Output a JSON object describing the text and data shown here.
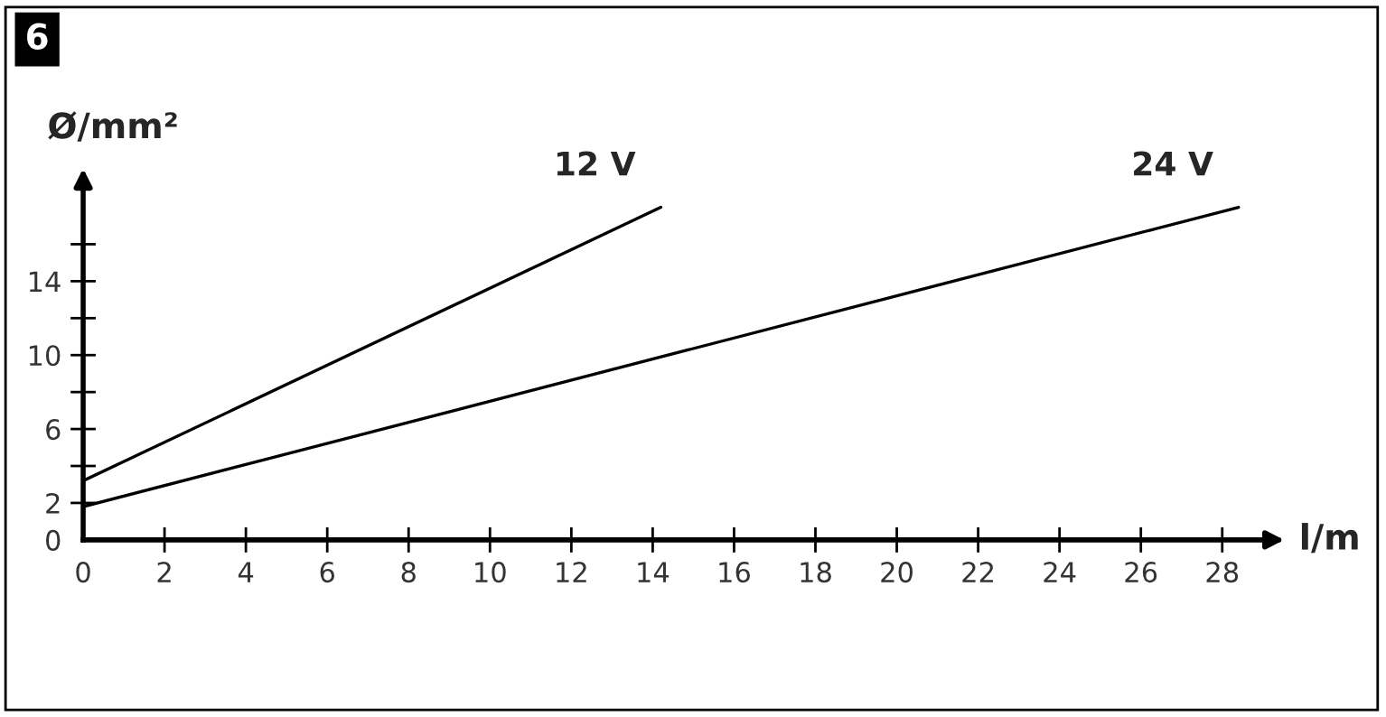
{
  "chart_data": {
    "type": "line",
    "title": "6",
    "xlabel": "l/m",
    "ylabel": "Ø/mm²",
    "series": [
      {
        "name": "12 V",
        "color": "#000000",
        "x": [
          0,
          14.2
        ],
        "values": [
          3.2,
          18.0
        ]
      },
      {
        "name": "24 V",
        "color": "#000000",
        "x": [
          0,
          28.4
        ],
        "values": [
          1.8,
          18.0
        ]
      }
    ],
    "xlim": [
      0,
      29.3
    ],
    "ylim": [
      0,
      19.4
    ],
    "xticks": [
      0,
      2,
      4,
      6,
      8,
      10,
      12,
      14,
      16,
      18,
      20,
      22,
      24,
      26,
      28
    ],
    "yticks": [
      0,
      2,
      {
        "value": 4,
        "label": null
      },
      6,
      {
        "value": 8,
        "label": null
      },
      10,
      {
        "value": 12,
        "label": null
      },
      14,
      {
        "value": 16,
        "label": null
      }
    ],
    "grid": false,
    "legend": false,
    "marker": "none",
    "line_style": "solid"
  }
}
